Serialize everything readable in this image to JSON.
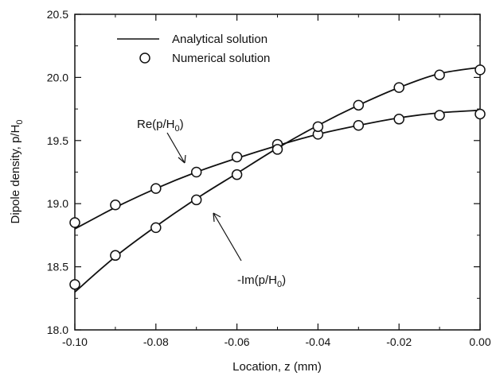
{
  "chart_data": {
    "type": "line",
    "xlabel": "Location, z (mm)",
    "ylabel": "Dipole density, p/H",
    "ylabel_subscript": "0",
    "xlim": [
      -0.1,
      0.0
    ],
    "ylim": [
      18.0,
      20.5
    ],
    "x_ticks": [
      -0.1,
      -0.08,
      -0.06,
      -0.04,
      -0.02,
      0.0
    ],
    "x_tick_labels": [
      "-0.10",
      "-0.08",
      "-0.06",
      "-0.04",
      "-0.02",
      "0.00"
    ],
    "y_ticks": [
      18.0,
      18.5,
      19.0,
      19.5,
      20.0,
      20.5
    ],
    "y_tick_labels": [
      "18.0",
      "18.5",
      "19.0",
      "19.5",
      "20.0",
      "20.5"
    ],
    "grid": false,
    "legend": {
      "placement": "top-left",
      "entries": [
        {
          "label": "Analytical solution",
          "marker": "line"
        },
        {
          "label": "Numerical solution",
          "marker": "circle"
        }
      ]
    },
    "x": [
      -0.1,
      -0.09,
      -0.08,
      -0.07,
      -0.06,
      -0.05,
      -0.04,
      -0.03,
      -0.02,
      -0.01,
      0.0
    ],
    "series": [
      {
        "label_text": "Re(p/H",
        "label_sub": "0",
        "label_close": ")",
        "analytical": [
          18.8,
          18.97,
          19.12,
          19.25,
          19.36,
          19.46,
          19.55,
          19.62,
          19.68,
          19.72,
          19.74
        ],
        "numerical": [
          18.85,
          18.99,
          19.12,
          19.25,
          19.37,
          19.47,
          19.55,
          19.62,
          19.67,
          19.7,
          19.71
        ]
      },
      {
        "label_text": "-Im(p/H",
        "label_sub": "0",
        "label_close": ")",
        "analytical": [
          18.3,
          18.58,
          18.82,
          19.04,
          19.24,
          19.44,
          19.62,
          19.78,
          19.92,
          20.03,
          20.08
        ],
        "numerical": [
          18.36,
          18.59,
          18.81,
          19.03,
          19.23,
          19.43,
          19.61,
          19.78,
          19.92,
          20.02,
          20.06
        ]
      }
    ]
  }
}
